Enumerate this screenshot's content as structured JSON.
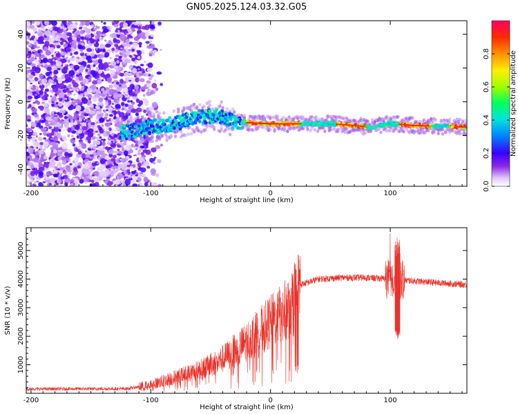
{
  "title": "GN05.2025.124.03.32.G05",
  "colors": {
    "snr_line": "#e8332a",
    "frame": "#000000",
    "colormap": [
      "#ffffff",
      "#e8d4ff",
      "#b080ff",
      "#6a00ff",
      "#3300ff",
      "#0000ff",
      "#00a0ff",
      "#00ffd0",
      "#00ff40",
      "#a0ff00",
      "#ffff00",
      "#ffa000",
      "#ff3000",
      "#ff0040"
    ]
  },
  "chart_data": [
    {
      "type": "heatmap",
      "name": "spectrogram",
      "xlabel": "Height of straight line (km)",
      "ylabel": "Frequency (Hz)",
      "xlim": [
        -204,
        164
      ],
      "ylim": [
        -50,
        48
      ],
      "xticks": [
        -200,
        -100,
        0,
        100
      ],
      "yticks": [
        -40,
        -20,
        0,
        20,
        40
      ],
      "colorbar": {
        "label": "Normalized spectral amplitude",
        "range": [
          0,
          1
        ],
        "ticks": [
          "0.0",
          "0.2",
          "0.4",
          "0.6",
          "0.8"
        ],
        "tick_values": [
          0,
          0.2,
          0.4,
          0.6,
          0.8
        ]
      },
      "ridge": [
        {
          "x": -120,
          "f": -18
        },
        {
          "x": -100,
          "f": -15
        },
        {
          "x": -80,
          "f": -13
        },
        {
          "x": -60,
          "f": -9
        },
        {
          "x": -45,
          "f": -8
        },
        {
          "x": -30,
          "f": -12
        },
        {
          "x": 0,
          "f": -13
        },
        {
          "x": 20,
          "f": -13
        },
        {
          "x": 50,
          "f": -13
        },
        {
          "x": 70,
          "f": -14
        },
        {
          "x": 85,
          "f": -15
        },
        {
          "x": 100,
          "f": -13
        },
        {
          "x": 120,
          "f": -14
        },
        {
          "x": 164,
          "f": -15
        }
      ]
    },
    {
      "type": "line",
      "name": "snr",
      "xlabel": "Height of straight line (km)",
      "ylabel": "SNR (10 * v/v)",
      "xlim": [
        -204,
        164
      ],
      "ylim": [
        0,
        5800
      ],
      "xticks": [
        -200,
        -100,
        0,
        100
      ],
      "yticks": [
        1000,
        2000,
        3000,
        4000,
        5000
      ],
      "trend": [
        {
          "x": -204,
          "y": 150
        },
        {
          "x": -120,
          "y": 160
        },
        {
          "x": -100,
          "y": 300
        },
        {
          "x": -80,
          "y": 550
        },
        {
          "x": -60,
          "y": 800
        },
        {
          "x": -40,
          "y": 1200
        },
        {
          "x": -20,
          "y": 1800
        },
        {
          "x": 0,
          "y": 2500
        },
        {
          "x": 15,
          "y": 3000
        },
        {
          "x": 25,
          "y": 3800
        },
        {
          "x": 40,
          "y": 4000
        },
        {
          "x": 60,
          "y": 4050
        },
        {
          "x": 80,
          "y": 4050
        },
        {
          "x": 100,
          "y": 4000
        },
        {
          "x": 130,
          "y": 3900
        },
        {
          "x": 164,
          "y": 3800
        }
      ],
      "features": [
        {
          "x": 102,
          "y_max": 5800,
          "y_min": 1850
        },
        {
          "x": 106,
          "y_max": 5500,
          "y_min": 1900
        }
      ]
    }
  ]
}
